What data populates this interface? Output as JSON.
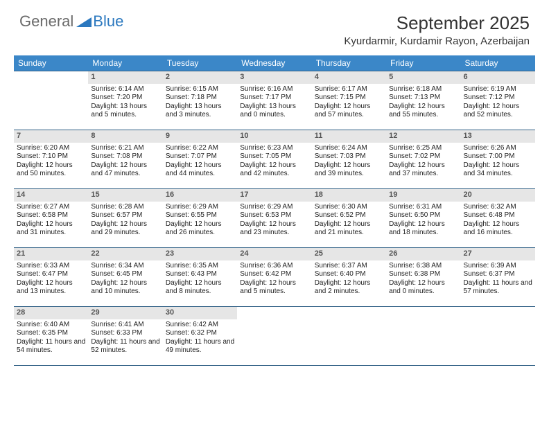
{
  "logo": {
    "text_gray": "General",
    "text_blue": "Blue",
    "icon_color": "#2b78bf"
  },
  "header": {
    "month_title": "September 2025",
    "location": "Kyurdarmir, Kurdamir Rayon, Azerbaijan"
  },
  "colors": {
    "weekday_bg": "#3b87c8",
    "weekday_fg": "#ffffff",
    "rule": "#2f5f85",
    "daynum_bg": "#e6e6e6",
    "daynum_fg": "#555555",
    "body_text": "#222222"
  },
  "weekdays": [
    "Sunday",
    "Monday",
    "Tuesday",
    "Wednesday",
    "Thursday",
    "Friday",
    "Saturday"
  ],
  "weeks": [
    [
      null,
      {
        "n": "1",
        "sr": "6:14 AM",
        "ss": "7:20 PM",
        "dl": "13 hours and 5 minutes."
      },
      {
        "n": "2",
        "sr": "6:15 AM",
        "ss": "7:18 PM",
        "dl": "13 hours and 3 minutes."
      },
      {
        "n": "3",
        "sr": "6:16 AM",
        "ss": "7:17 PM",
        "dl": "13 hours and 0 minutes."
      },
      {
        "n": "4",
        "sr": "6:17 AM",
        "ss": "7:15 PM",
        "dl": "12 hours and 57 minutes."
      },
      {
        "n": "5",
        "sr": "6:18 AM",
        "ss": "7:13 PM",
        "dl": "12 hours and 55 minutes."
      },
      {
        "n": "6",
        "sr": "6:19 AM",
        "ss": "7:12 PM",
        "dl": "12 hours and 52 minutes."
      }
    ],
    [
      {
        "n": "7",
        "sr": "6:20 AM",
        "ss": "7:10 PM",
        "dl": "12 hours and 50 minutes."
      },
      {
        "n": "8",
        "sr": "6:21 AM",
        "ss": "7:08 PM",
        "dl": "12 hours and 47 minutes."
      },
      {
        "n": "9",
        "sr": "6:22 AM",
        "ss": "7:07 PM",
        "dl": "12 hours and 44 minutes."
      },
      {
        "n": "10",
        "sr": "6:23 AM",
        "ss": "7:05 PM",
        "dl": "12 hours and 42 minutes."
      },
      {
        "n": "11",
        "sr": "6:24 AM",
        "ss": "7:03 PM",
        "dl": "12 hours and 39 minutes."
      },
      {
        "n": "12",
        "sr": "6:25 AM",
        "ss": "7:02 PM",
        "dl": "12 hours and 37 minutes."
      },
      {
        "n": "13",
        "sr": "6:26 AM",
        "ss": "7:00 PM",
        "dl": "12 hours and 34 minutes."
      }
    ],
    [
      {
        "n": "14",
        "sr": "6:27 AM",
        "ss": "6:58 PM",
        "dl": "12 hours and 31 minutes."
      },
      {
        "n": "15",
        "sr": "6:28 AM",
        "ss": "6:57 PM",
        "dl": "12 hours and 29 minutes."
      },
      {
        "n": "16",
        "sr": "6:29 AM",
        "ss": "6:55 PM",
        "dl": "12 hours and 26 minutes."
      },
      {
        "n": "17",
        "sr": "6:29 AM",
        "ss": "6:53 PM",
        "dl": "12 hours and 23 minutes."
      },
      {
        "n": "18",
        "sr": "6:30 AM",
        "ss": "6:52 PM",
        "dl": "12 hours and 21 minutes."
      },
      {
        "n": "19",
        "sr": "6:31 AM",
        "ss": "6:50 PM",
        "dl": "12 hours and 18 minutes."
      },
      {
        "n": "20",
        "sr": "6:32 AM",
        "ss": "6:48 PM",
        "dl": "12 hours and 16 minutes."
      }
    ],
    [
      {
        "n": "21",
        "sr": "6:33 AM",
        "ss": "6:47 PM",
        "dl": "12 hours and 13 minutes."
      },
      {
        "n": "22",
        "sr": "6:34 AM",
        "ss": "6:45 PM",
        "dl": "12 hours and 10 minutes."
      },
      {
        "n": "23",
        "sr": "6:35 AM",
        "ss": "6:43 PM",
        "dl": "12 hours and 8 minutes."
      },
      {
        "n": "24",
        "sr": "6:36 AM",
        "ss": "6:42 PM",
        "dl": "12 hours and 5 minutes."
      },
      {
        "n": "25",
        "sr": "6:37 AM",
        "ss": "6:40 PM",
        "dl": "12 hours and 2 minutes."
      },
      {
        "n": "26",
        "sr": "6:38 AM",
        "ss": "6:38 PM",
        "dl": "12 hours and 0 minutes."
      },
      {
        "n": "27",
        "sr": "6:39 AM",
        "ss": "6:37 PM",
        "dl": "11 hours and 57 minutes."
      }
    ],
    [
      {
        "n": "28",
        "sr": "6:40 AM",
        "ss": "6:35 PM",
        "dl": "11 hours and 54 minutes."
      },
      {
        "n": "29",
        "sr": "6:41 AM",
        "ss": "6:33 PM",
        "dl": "11 hours and 52 minutes."
      },
      {
        "n": "30",
        "sr": "6:42 AM",
        "ss": "6:32 PM",
        "dl": "11 hours and 49 minutes."
      },
      null,
      null,
      null,
      null
    ]
  ],
  "labels": {
    "sunrise_prefix": "Sunrise: ",
    "sunset_prefix": "Sunset: ",
    "daylight_prefix": "Daylight: "
  }
}
